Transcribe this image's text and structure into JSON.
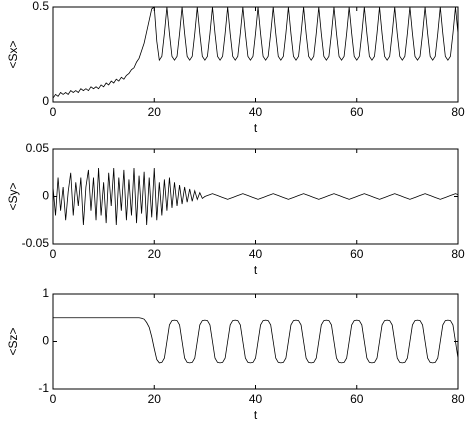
{
  "chart_data": [
    {
      "type": "line",
      "xlabel": "t",
      "ylabel": "<Sx>",
      "color": "#000000",
      "xlim": [
        0,
        80
      ],
      "ylim": [
        0,
        0.5
      ],
      "xticks": [
        0,
        20,
        40,
        60,
        80
      ],
      "yticks": [
        0,
        0.5
      ],
      "x": [
        0,
        0.5,
        1,
        1.5,
        2,
        2.5,
        3,
        3.5,
        4,
        4.5,
        5,
        5.5,
        6,
        6.5,
        7,
        7.5,
        8,
        8.5,
        9,
        9.5,
        10,
        10.5,
        11,
        11.5,
        12,
        12.5,
        13,
        13.5,
        14,
        14.5,
        15,
        15.5,
        16,
        16.5,
        17,
        17.5,
        18,
        18.5,
        19,
        19.5,
        20,
        20.5,
        21,
        21.5,
        22,
        22.5,
        23,
        23.5,
        24,
        24.5,
        25,
        25.5,
        26,
        26.5,
        27,
        27.5,
        28,
        28.5,
        29,
        29.5,
        30,
        30.5,
        31,
        31.5,
        32,
        32.5,
        33,
        33.5,
        34,
        34.5,
        35,
        35.5,
        36,
        36.5,
        37,
        37.5,
        38,
        38.5,
        39,
        39.5,
        40,
        40.5,
        41,
        41.5,
        42,
        42.5,
        43,
        43.5,
        44,
        44.5,
        45,
        45.5,
        46,
        46.5,
        47,
        47.5,
        48,
        48.5,
        49,
        49.5,
        50,
        50.5,
        51,
        51.5,
        52,
        52.5,
        53,
        53.5,
        54,
        54.5,
        55,
        55.5,
        56,
        56.5,
        57,
        57.5,
        58,
        58.5,
        59,
        59.5,
        60,
        60.5,
        61,
        61.5,
        62,
        62.5,
        63,
        63.5,
        64,
        64.5,
        65,
        65.5,
        66,
        66.5,
        67,
        67.5,
        68,
        68.5,
        69,
        69.5,
        70,
        70.5,
        71,
        71.5,
        72,
        72.5,
        73,
        73.5,
        74,
        74.5,
        75,
        75.5,
        76,
        76.5,
        77,
        77.5,
        78,
        78.5,
        79,
        79.5,
        80
      ],
      "values": [
        0.02,
        0.04,
        0.03,
        0.05,
        0.04,
        0.05,
        0.04,
        0.06,
        0.05,
        0.06,
        0.05,
        0.07,
        0.06,
        0.07,
        0.06,
        0.08,
        0.07,
        0.08,
        0.07,
        0.09,
        0.08,
        0.1,
        0.09,
        0.11,
        0.1,
        0.12,
        0.11,
        0.13,
        0.12,
        0.14,
        0.15,
        0.17,
        0.18,
        0.21,
        0.23,
        0.27,
        0.31,
        0.37,
        0.43,
        0.49,
        0.5,
        0.32,
        0.22,
        0.24,
        0.36,
        0.5,
        0.36,
        0.24,
        0.22,
        0.24,
        0.36,
        0.5,
        0.36,
        0.24,
        0.22,
        0.24,
        0.36,
        0.5,
        0.36,
        0.24,
        0.22,
        0.24,
        0.36,
        0.5,
        0.36,
        0.24,
        0.22,
        0.24,
        0.36,
        0.5,
        0.36,
        0.24,
        0.22,
        0.24,
        0.36,
        0.5,
        0.36,
        0.24,
        0.22,
        0.24,
        0.36,
        0.5,
        0.36,
        0.24,
        0.22,
        0.24,
        0.36,
        0.5,
        0.36,
        0.24,
        0.22,
        0.24,
        0.36,
        0.5,
        0.36,
        0.24,
        0.22,
        0.24,
        0.36,
        0.5,
        0.36,
        0.24,
        0.22,
        0.24,
        0.36,
        0.5,
        0.36,
        0.24,
        0.22,
        0.24,
        0.36,
        0.5,
        0.36,
        0.24,
        0.22,
        0.24,
        0.36,
        0.5,
        0.36,
        0.24,
        0.22,
        0.24,
        0.36,
        0.5,
        0.36,
        0.24,
        0.22,
        0.24,
        0.36,
        0.5,
        0.36,
        0.24,
        0.22,
        0.24,
        0.36,
        0.5,
        0.36,
        0.24,
        0.22,
        0.24,
        0.36,
        0.5,
        0.36,
        0.24,
        0.22,
        0.24,
        0.36,
        0.5,
        0.36,
        0.24,
        0.22,
        0.24,
        0.36,
        0.5,
        0.36,
        0.24,
        0.22,
        0.24,
        0.36,
        0.5,
        0.36
      ]
    },
    {
      "type": "line",
      "xlabel": "t",
      "ylabel": "<Sy>",
      "color": "#000000",
      "xlim": [
        0,
        80
      ],
      "ylim": [
        -0.05,
        0.05
      ],
      "xticks": [
        0,
        20,
        40,
        60,
        80
      ],
      "yticks": [
        -0.05,
        0,
        0.05
      ],
      "x": [
        0,
        0.5,
        1,
        1.5,
        2,
        2.5,
        3,
        3.5,
        4,
        4.5,
        5,
        5.5,
        6,
        6.5,
        7,
        7.5,
        8,
        8.5,
        9,
        9.5,
        10,
        10.5,
        11,
        11.5,
        12,
        12.5,
        13,
        13.5,
        14,
        14.5,
        15,
        15.5,
        16,
        16.5,
        17,
        17.5,
        18,
        18.5,
        19,
        19.5,
        20,
        20.5,
        21,
        21.5,
        22,
        22.5,
        23,
        23.5,
        24,
        24.5,
        25,
        25.5,
        26,
        26.5,
        27,
        27.5,
        28,
        28.5,
        29,
        29.5,
        30,
        30.5,
        31,
        31.5,
        32,
        32.5,
        33,
        33.5,
        34,
        34.5,
        35,
        35.5,
        36,
        36.5,
        37,
        37.5,
        38,
        38.5,
        39,
        39.5,
        40,
        40.5,
        41,
        41.5,
        42,
        42.5,
        43,
        43.5,
        44,
        44.5,
        45,
        45.5,
        46,
        46.5,
        47,
        47.5,
        48,
        48.5,
        49,
        49.5,
        50,
        50.5,
        51,
        51.5,
        52,
        52.5,
        53,
        53.5,
        54,
        54.5,
        55,
        55.5,
        56,
        56.5,
        57,
        57.5,
        58,
        58.5,
        59,
        59.5,
        60,
        60.5,
        61,
        61.5,
        62,
        62.5,
        63,
        63.5,
        64,
        64.5,
        65,
        65.5,
        66,
        66.5,
        67,
        67.5,
        68,
        68.5,
        69,
        69.5,
        70,
        70.5,
        71,
        71.5,
        72,
        72.5,
        73,
        73.5,
        74,
        74.5,
        75,
        75.5,
        76,
        76.5,
        77,
        77.5,
        78,
        78.5,
        79,
        79.5,
        80
      ],
      "values": [
        0.01,
        -0.02,
        0.02,
        -0.015,
        0.01,
        -0.025,
        0.005,
        0.025,
        -0.02,
        0.015,
        -0.01,
        0.02,
        -0.03,
        0.01,
        0.028,
        -0.015,
        0.02,
        -0.025,
        0.03,
        -0.02,
        0.015,
        -0.028,
        0.025,
        -0.01,
        0.03,
        -0.03,
        0.02,
        -0.015,
        0.028,
        -0.025,
        0.018,
        -0.02,
        0.03,
        -0.028,
        0.022,
        -0.018,
        0.026,
        -0.03,
        0.02,
        -0.022,
        0.03,
        -0.025,
        0.015,
        -0.02,
        0.018,
        -0.015,
        0.02,
        -0.012,
        0.015,
        -0.01,
        0.012,
        -0.008,
        0.01,
        -0.006,
        0.008,
        -0.005,
        0.006,
        -0.003,
        0.004,
        -0.002,
        0,
        0.001,
        0.002,
        0.003,
        0.002,
        0.001,
        0,
        -0.001,
        -0.002,
        -0.003,
        -0.002,
        -0.001,
        0,
        0.001,
        0.002,
        0.003,
        0.002,
        0.001,
        0,
        -0.001,
        -0.002,
        -0.003,
        -0.002,
        -0.001,
        0,
        0.001,
        0.002,
        0.003,
        0.002,
        0.001,
        0,
        -0.001,
        -0.002,
        -0.003,
        -0.002,
        -0.001,
        0,
        0.001,
        0.002,
        0.003,
        0.002,
        0.001,
        0,
        -0.001,
        -0.002,
        -0.003,
        -0.002,
        -0.001,
        0,
        0.001,
        0.002,
        0.003,
        0.002,
        0.001,
        0,
        -0.001,
        -0.002,
        -0.003,
        -0.002,
        -0.001,
        0,
        0.001,
        0.002,
        0.003,
        0.002,
        0.001,
        0,
        -0.001,
        -0.002,
        -0.003,
        -0.002,
        -0.001,
        0,
        0.001,
        0.002,
        0.003,
        0.002,
        0.001,
        0,
        -0.001,
        -0.002,
        -0.003,
        -0.002,
        -0.001,
        0,
        0.001,
        0.002,
        0.003,
        0.002,
        0.001,
        0,
        -0.001,
        -0.002,
        -0.003,
        -0.002,
        -0.001,
        0,
        0.001,
        0.002,
        0.003,
        0.002
      ]
    },
    {
      "type": "line",
      "xlabel": "t",
      "ylabel": "<Sz>",
      "color": "#000000",
      "xlim": [
        0,
        80
      ],
      "ylim": [
        -1,
        1
      ],
      "xticks": [
        0,
        20,
        40,
        60,
        80
      ],
      "yticks": [
        -1,
        0,
        1
      ],
      "x": [
        0,
        0.5,
        1,
        1.5,
        2,
        2.5,
        3,
        3.5,
        4,
        4.5,
        5,
        5.5,
        6,
        6.5,
        7,
        7.5,
        8,
        8.5,
        9,
        9.5,
        10,
        10.5,
        11,
        11.5,
        12,
        12.5,
        13,
        13.5,
        14,
        14.5,
        15,
        15.5,
        16,
        16.5,
        17,
        17.5,
        18,
        18.5,
        19,
        19.5,
        20,
        20.5,
        21,
        21.5,
        22,
        22.5,
        23,
        23.5,
        24,
        24.5,
        25,
        25.5,
        26,
        26.5,
        27,
        27.5,
        28,
        28.5,
        29,
        29.5,
        30,
        30.5,
        31,
        31.5,
        32,
        32.5,
        33,
        33.5,
        34,
        34.5,
        35,
        35.5,
        36,
        36.5,
        37,
        37.5,
        38,
        38.5,
        39,
        39.5,
        40,
        40.5,
        41,
        41.5,
        42,
        42.5,
        43,
        43.5,
        44,
        44.5,
        45,
        45.5,
        46,
        46.5,
        47,
        47.5,
        48,
        48.5,
        49,
        49.5,
        50,
        50.5,
        51,
        51.5,
        52,
        52.5,
        53,
        53.5,
        54,
        54.5,
        55,
        55.5,
        56,
        56.5,
        57,
        57.5,
        58,
        58.5,
        59,
        59.5,
        60,
        60.5,
        61,
        61.5,
        62,
        62.5,
        63,
        63.5,
        64,
        64.5,
        65,
        65.5,
        66,
        66.5,
        67,
        67.5,
        68,
        68.5,
        69,
        69.5,
        70,
        70.5,
        71,
        71.5,
        72,
        72.5,
        73,
        73.5,
        74,
        74.5,
        75,
        75.5,
        76,
        76.5,
        77,
        77.5,
        78,
        78.5,
        79,
        79.5,
        80
      ],
      "values": [
        0.5,
        0.5,
        0.5,
        0.5,
        0.5,
        0.5,
        0.5,
        0.5,
        0.5,
        0.5,
        0.5,
        0.5,
        0.5,
        0.5,
        0.5,
        0.5,
        0.5,
        0.5,
        0.5,
        0.5,
        0.5,
        0.5,
        0.5,
        0.5,
        0.5,
        0.5,
        0.5,
        0.5,
        0.5,
        0.5,
        0.5,
        0.5,
        0.5,
        0.5,
        0.5,
        0.49,
        0.47,
        0.4,
        0.3,
        0.1,
        -0.15,
        -0.38,
        -0.45,
        -0.44,
        -0.35,
        0,
        0.35,
        0.44,
        0.45,
        0.44,
        0.35,
        0,
        -0.35,
        -0.44,
        -0.45,
        -0.44,
        -0.35,
        0,
        0.35,
        0.44,
        0.45,
        0.44,
        0.35,
        0,
        -0.35,
        -0.44,
        -0.45,
        -0.44,
        -0.35,
        0,
        0.35,
        0.44,
        0.45,
        0.44,
        0.35,
        0,
        -0.35,
        -0.44,
        -0.45,
        -0.44,
        -0.35,
        0,
        0.35,
        0.44,
        0.45,
        0.44,
        0.35,
        0,
        -0.35,
        -0.44,
        -0.45,
        -0.44,
        -0.35,
        0,
        0.35,
        0.44,
        0.45,
        0.44,
        0.35,
        0,
        -0.35,
        -0.44,
        -0.45,
        -0.44,
        -0.35,
        0,
        0.35,
        0.44,
        0.45,
        0.44,
        0.35,
        0,
        -0.35,
        -0.44,
        -0.45,
        -0.44,
        -0.35,
        0,
        0.35,
        0.44,
        0.45,
        0.44,
        0.35,
        0,
        -0.35,
        -0.44,
        -0.45,
        -0.44,
        -0.35,
        0,
        0.35,
        0.44,
        0.45,
        0.44,
        0.35,
        0,
        -0.35,
        -0.44,
        -0.45,
        -0.44,
        -0.35,
        0,
        0.35,
        0.44,
        0.45,
        0.44,
        0.35,
        0,
        -0.35,
        -0.44,
        -0.45,
        -0.44,
        -0.35,
        0,
        0.35,
        0.44,
        0.45,
        0.44,
        0.35,
        0,
        -0.35
      ]
    }
  ]
}
